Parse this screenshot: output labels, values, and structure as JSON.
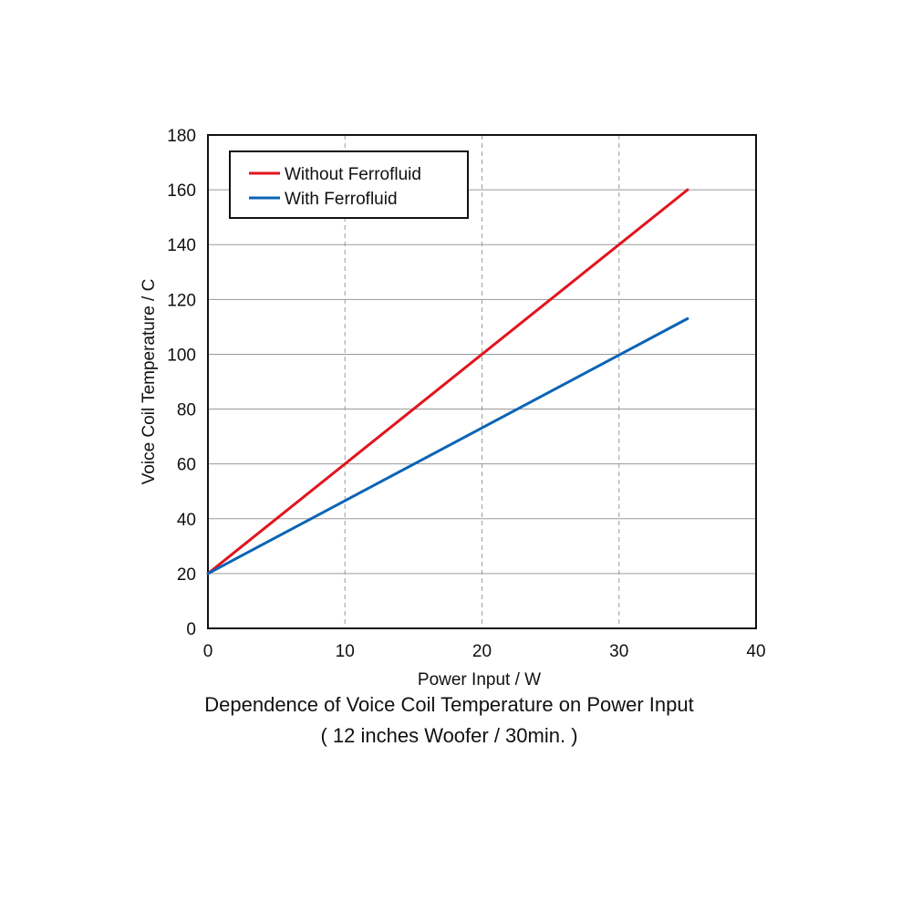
{
  "chart_data": {
    "type": "line",
    "xlabel": "Power Input / W",
    "ylabel": "Voice Coil Temperature / C",
    "xlim": [
      0,
      40
    ],
    "ylim": [
      0,
      180
    ],
    "xticks": [
      0,
      10,
      20,
      30,
      40
    ],
    "yticks": [
      0,
      20,
      40,
      60,
      80,
      100,
      120,
      140,
      160,
      180
    ],
    "grid": {
      "x": "dashed",
      "y": "solid"
    },
    "legend_position": "top-left",
    "series": [
      {
        "name": "Without Ferrofluid",
        "color": "#e0141e",
        "x": [
          0,
          35
        ],
        "y": [
          20,
          160
        ]
      },
      {
        "name": "With Ferrofluid",
        "color": "#0a64b4",
        "x": [
          0,
          35
        ],
        "y": [
          20,
          113
        ]
      }
    ]
  },
  "caption": {
    "line1": "Dependence of Voice Coil Temperature on Power Input",
    "line2": "( 12 inches Woofer / 30min. )"
  }
}
